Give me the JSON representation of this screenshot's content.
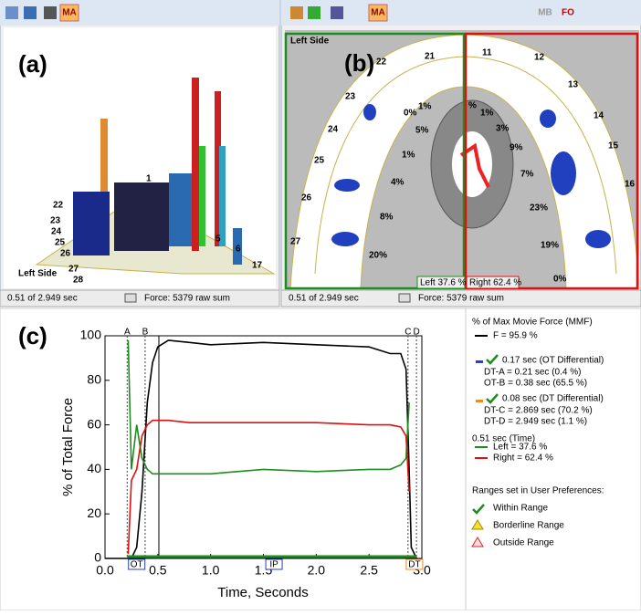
{
  "panel_a": {
    "label": "(a)",
    "side": "Left Side",
    "toolbar": [
      "MA"
    ],
    "teeth": [
      "22",
      "23",
      "24",
      "25",
      "26",
      "27",
      "28",
      "1",
      "5",
      "6",
      "17"
    ],
    "status_time": "0.51 of 2.949 sec",
    "status_force": "Force: 5379 raw sum"
  },
  "panel_b": {
    "label": "(b)",
    "side": "Left Side",
    "toolbar": [
      "MA",
      "MB",
      "FO"
    ],
    "teeth": [
      "22",
      "21",
      "11",
      "12",
      "13",
      "14",
      "15",
      "16",
      "23",
      "24",
      "25",
      "26",
      "27"
    ],
    "left_pct": [
      "0%",
      "1%",
      "5%",
      "1%",
      "4%",
      "8%",
      "20%"
    ],
    "right_pct": [
      "%",
      "1%",
      "3%",
      "9%",
      "7%",
      "23%",
      "19%",
      "0%"
    ],
    "left_total": "Left 37.6 %",
    "right_total": "Right 62.4 %",
    "status_time": "0.51 of 2.949 sec",
    "status_force": "Force: 5379 raw sum"
  },
  "chart_data": {
    "type": "line",
    "title": "(c)",
    "xlabel": "Time, Seconds",
    "ylabel": "% of Total Force",
    "x": [
      0.0,
      0.2,
      0.22,
      0.25,
      0.3,
      0.35,
      0.4,
      0.45,
      0.5,
      0.6,
      0.8,
      1.0,
      1.5,
      2.0,
      2.5,
      2.7,
      2.8,
      2.85,
      2.88,
      2.9,
      2.95
    ],
    "series": [
      {
        "name": "F = 95.9 %",
        "color": "#000000",
        "values": [
          0,
          0,
          0,
          0,
          5,
          30,
          70,
          88,
          95,
          98,
          97,
          96,
          97,
          96,
          95,
          92,
          92,
          85,
          40,
          5,
          0
        ]
      },
      {
        "name": "Left = 37.6 %",
        "color": "#1e8c1e",
        "values": [
          null,
          null,
          98,
          40,
          60,
          45,
          40,
          38,
          38,
          38,
          38,
          38,
          40,
          39,
          40,
          40,
          42,
          45,
          70,
          null,
          null
        ]
      },
      {
        "name": "Right = 62.4 %",
        "color": "#e01010",
        "values": [
          null,
          null,
          2,
          35,
          40,
          55,
          60,
          62,
          62,
          62,
          61,
          61,
          61,
          61,
          60,
          60,
          59,
          55,
          30,
          null,
          null
        ]
      }
    ],
    "xlim": [
      0,
      3
    ],
    "ylim": [
      0,
      100
    ],
    "xticks": [
      {
        "value": 0,
        "label": "0.0"
      },
      0.5,
      {
        "value": 1,
        "label": "1.0"
      },
      1.5,
      {
        "value": 2,
        "label": "2.0"
      },
      2.5,
      {
        "value": 3,
        "label": "3.0"
      }
    ],
    "yticks": [
      0,
      20,
      40,
      60,
      80,
      100
    ],
    "markers": [
      {
        "label": "A",
        "x": 0.21
      },
      {
        "label": "B",
        "x": 0.38
      },
      {
        "label": "C",
        "x": 2.869
      },
      {
        "label": "D",
        "x": 2.949
      }
    ],
    "cursor_x": 0.51,
    "tags": [
      {
        "label": "OT",
        "x": 0.3
      },
      {
        "label": "IP",
        "x": 1.6
      },
      {
        "label": "DT",
        "x": 2.93
      }
    ]
  },
  "legend_panel": {
    "header": "% of Max Movie Force (MMF)",
    "ot_title": "0.17 sec (OT Differential)",
    "ot_lines": [
      "DT-A = 0.21 sec (0.4 %)",
      "OT-B = 0.38 sec (65.5 %)"
    ],
    "dt_title": "0.08 sec (DT Differential)",
    "dt_lines": [
      "DT-C = 2.869 sec (70.2 %)",
      "DT-D = 2.949 sec (1.1 %)"
    ],
    "time_title": "0.51 sec (Time)",
    "ranges_title": "Ranges set in User Preferences:",
    "ranges": [
      "Within Range",
      "Borderline Range",
      "Outside Range"
    ]
  }
}
